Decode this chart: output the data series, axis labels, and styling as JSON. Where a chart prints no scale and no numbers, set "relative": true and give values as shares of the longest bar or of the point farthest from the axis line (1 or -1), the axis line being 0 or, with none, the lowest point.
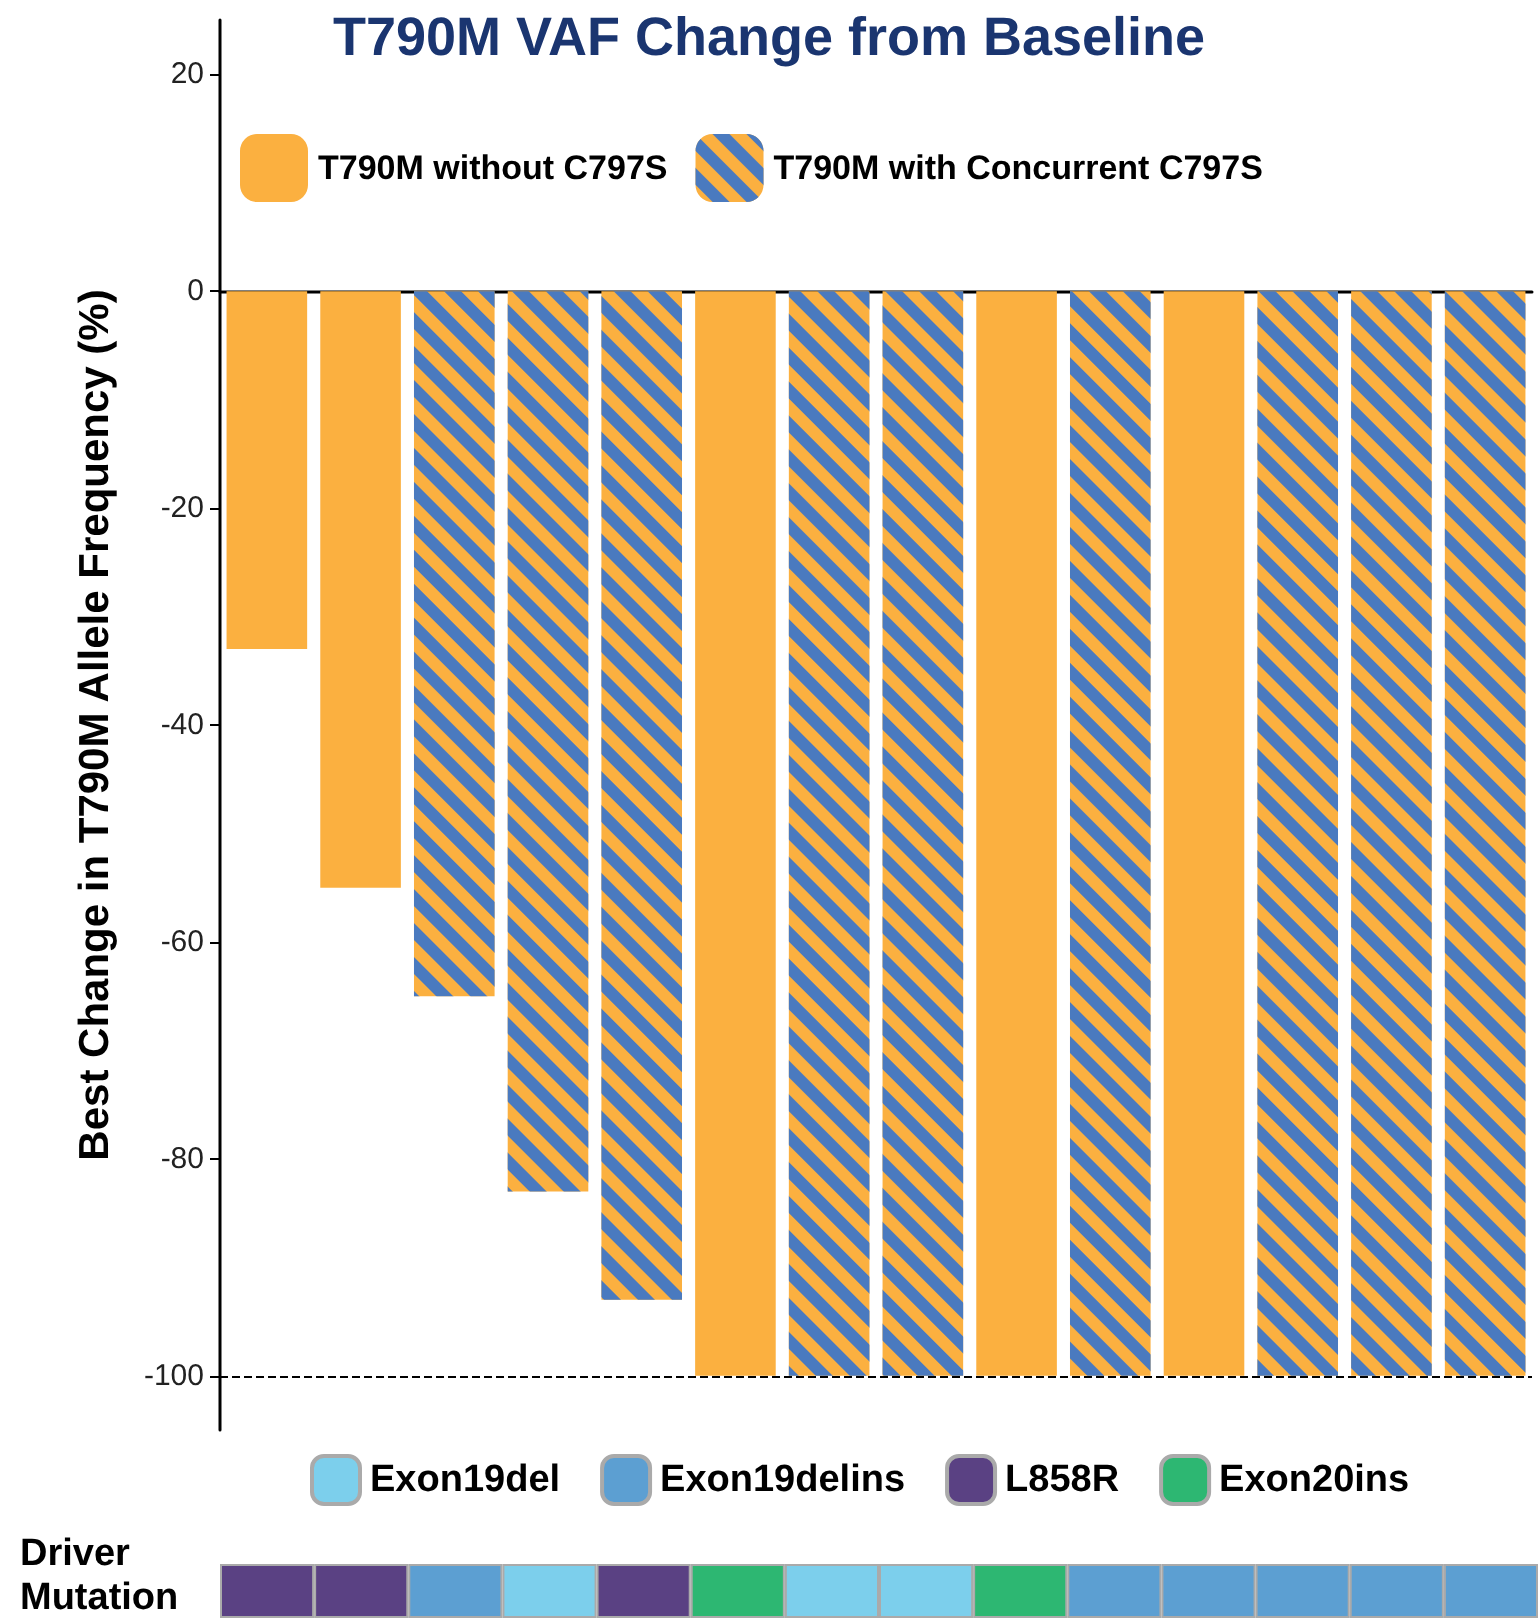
{
  "chart_data": [
    {
      "type": "bar",
      "title": "T790M VAF Change from Baseline",
      "ylabel": "Best Change in T790M Allele Frequency (%)",
      "categories": [
        null,
        null,
        null,
        null,
        null,
        null,
        null,
        null,
        null,
        null,
        null,
        null,
        null,
        null
      ],
      "series": [
        {
          "name": "T790M without C797S",
          "color": "#fbb040",
          "values": [
            -33,
            -55,
            null,
            null,
            null,
            -100,
            null,
            null,
            -100,
            null,
            -100,
            null,
            null,
            null
          ]
        },
        {
          "name": "T790M with Concurrent C797S",
          "color": "#4a7abf",
          "values": [
            null,
            null,
            -65,
            -83,
            -93,
            null,
            -100,
            -100,
            null,
            -100,
            null,
            -100,
            -100,
            -100
          ]
        }
      ],
      "ylim": [
        -105,
        25
      ],
      "yticks": [
        -100,
        -80,
        -60,
        -40,
        -20,
        0,
        20
      ],
      "ref_lines": [
        {
          "axis": "y",
          "value": -100,
          "line_style": "dashed",
          "color": "#000000"
        }
      ],
      "grid": false,
      "legend": "top left",
      "tick_labels": "y"
    },
    {
      "type": "bar",
      "categories": [
        null,
        null,
        null,
        null,
        null,
        null,
        null,
        null,
        null,
        null,
        null,
        null,
        null,
        null
      ],
      "ylabel": "Driver Mutation",
      "relative": true,
      "stacked": true,
      "series": [
        {
          "name": "Exon19del",
          "color": "#7ccfec",
          "values": [
            null,
            null,
            null,
            1,
            null,
            null,
            1,
            1,
            null,
            null,
            null,
            null,
            null,
            null
          ]
        },
        {
          "name": "Exon19delins",
          "color": "#5c9fd2",
          "values": [
            null,
            null,
            1,
            null,
            null,
            null,
            null,
            null,
            null,
            1,
            1,
            1,
            1,
            1
          ]
        },
        {
          "name": "L858R",
          "color": "#5a4183",
          "values": [
            1,
            1,
            null,
            null,
            1,
            null,
            null,
            null,
            null,
            null,
            null,
            null,
            null,
            null
          ]
        },
        {
          "name": "Exon20ins",
          "color": "#2db772",
          "values": [
            null,
            null,
            null,
            null,
            null,
            1,
            null,
            null,
            1,
            null,
            null,
            null,
            null,
            null
          ]
        }
      ],
      "legend": "top"
    }
  ]
}
